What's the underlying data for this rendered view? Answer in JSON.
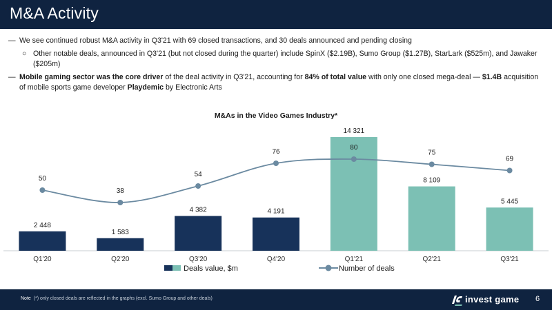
{
  "header": {
    "title": "M&A Activity"
  },
  "bullets": {
    "b1": {
      "dash": "—",
      "text": "We see continued robust M&A activity in Q3'21 with 69 closed transactions, and 30 deals announced and pending closing"
    },
    "b2": {
      "marker": "○",
      "text": "Other notable deals, announced in Q3'21 (but not closed during the quarter) include SpinX ($2.19B), Sumo Group ($1.27B), StarLark ($525m), and Jawaker ($205m)"
    },
    "b3": {
      "dash": "—",
      "p1": "Mobile gaming sector was the core driver",
      "p2": " of the deal activity in Q3'21, accounting for ",
      "p3": "84% of total value",
      "p4": " with only one closed mega-deal — ",
      "p5": "$1.4B",
      "p6": " acquisition of mobile sports game developer ",
      "p7": "Playdemic",
      "p8": " by Electronic Arts"
    }
  },
  "chart_data": {
    "type": "bar+line",
    "title": "M&As in the Video Games Industry*",
    "categories": [
      "Q1'20",
      "Q2'20",
      "Q3'20",
      "Q4'20",
      "Q1'21",
      "Q2'21",
      "Q3'21"
    ],
    "series": [
      {
        "name": "Deals value, $m",
        "type": "bar",
        "values": [
          2448,
          1583,
          4382,
          4191,
          14321,
          8109,
          5445
        ],
        "labels": [
          "2 448",
          "1 583",
          "4 382",
          "4 191",
          "14 321",
          "8 109",
          "5 445"
        ],
        "colors": [
          "#17325a",
          "#17325a",
          "#17325a",
          "#17325a",
          "#7cc0b4",
          "#7cc0b4",
          "#7cc0b4"
        ]
      },
      {
        "name": "Number of deals",
        "type": "line",
        "values": [
          50,
          38,
          54,
          76,
          80,
          75,
          69
        ],
        "color": "#6b8aa1"
      }
    ],
    "legend": {
      "bar_label": "Deals value, $m",
      "line_label": "Number of deals",
      "placement": "bottom-center"
    }
  },
  "footer": {
    "note_label": "Note",
    "note": "(*) only closed deals are reflected in the graphs (excl. Sumo Group and other deals)",
    "brand": "invest game",
    "page": "6"
  }
}
